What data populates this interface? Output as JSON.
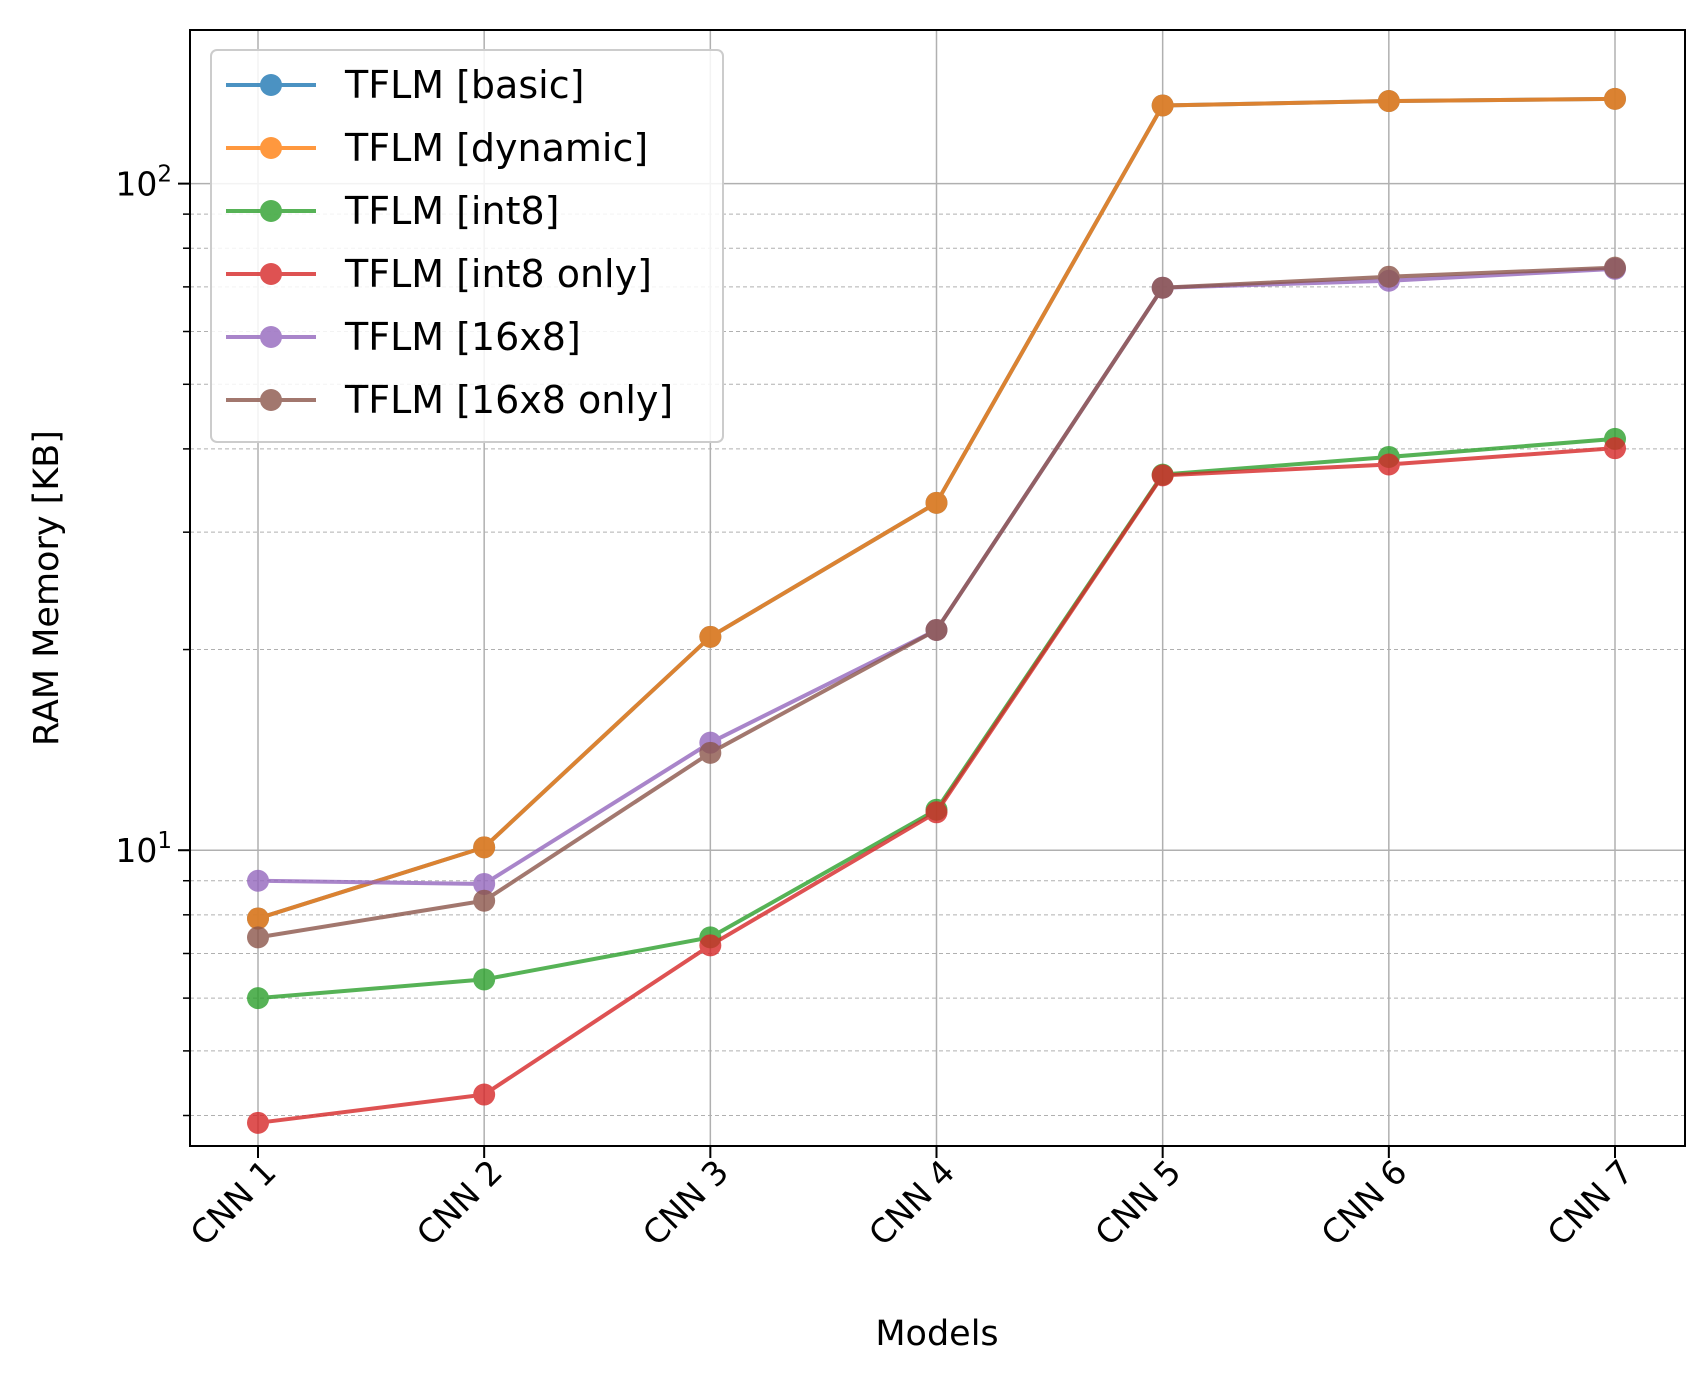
{
  "chart_data": {
    "type": "line",
    "xlabel": "Models",
    "ylabel": "RAM Memory [KB]",
    "yscale": "log",
    "ylim": [
      3.6,
      170
    ],
    "categories": [
      "CNN 1",
      "CNN 2",
      "CNN 3",
      "CNN 4",
      "CNN 5",
      "CNN 6",
      "CNN 7"
    ],
    "y_ticks": [
      {
        "base": "10",
        "exp": "1",
        "value": 10
      },
      {
        "base": "10",
        "exp": "2",
        "value": 100
      }
    ],
    "grid": true,
    "legend_position": "upper-left",
    "series": [
      {
        "name": "TFLM [basic]",
        "color": "#1f77b4",
        "values": [
          7.9,
          10.1,
          20.9,
          33.2,
          131,
          133,
          134
        ]
      },
      {
        "name": "TFLM [dynamic]",
        "color": "#ff7f0e",
        "values": [
          7.9,
          10.1,
          20.9,
          33.2,
          131,
          133,
          134
        ]
      },
      {
        "name": "TFLM [int8]",
        "color": "#2ca02c",
        "values": [
          6.0,
          6.4,
          7.4,
          11.5,
          36.6,
          38.9,
          41.4
        ]
      },
      {
        "name": "TFLM [int8 only]",
        "color": "#d62728",
        "values": [
          3.9,
          4.3,
          7.2,
          11.4,
          36.5,
          37.9,
          40.1
        ]
      },
      {
        "name": "TFLM [16x8]",
        "color": "#9467bd",
        "values": [
          9.0,
          8.9,
          14.5,
          21.4,
          69.8,
          71.5,
          74.5
        ]
      },
      {
        "name": "TFLM [16x8 only]",
        "color": "#8c564b",
        "values": [
          7.4,
          8.4,
          14.0,
          21.4,
          69.8,
          72.5,
          74.8
        ]
      }
    ]
  }
}
